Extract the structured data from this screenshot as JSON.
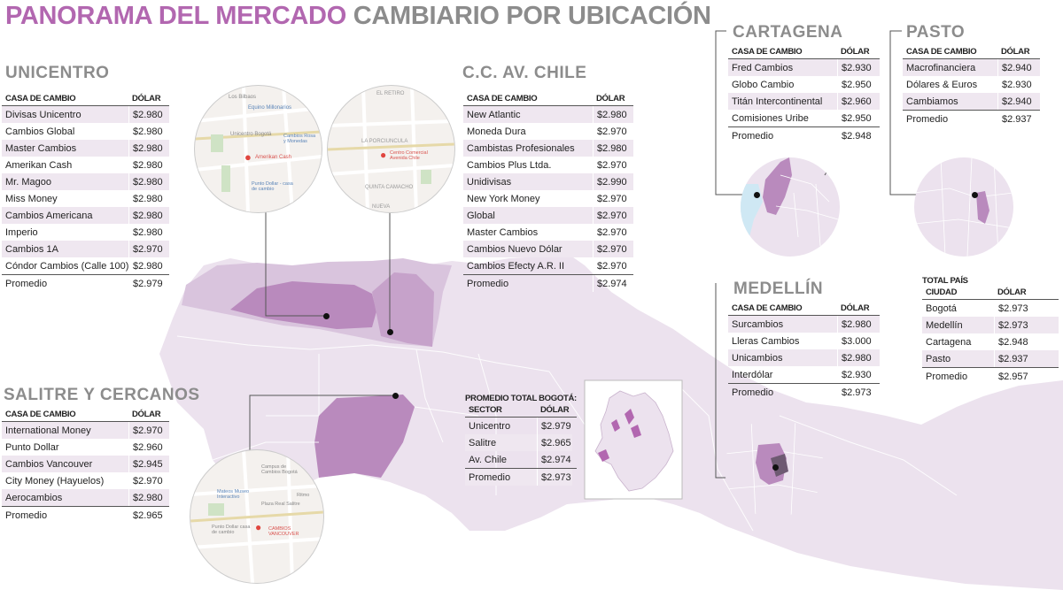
{
  "title": {
    "part1": "PANORAMA DEL MERCADO",
    "part2": "CAMBIARIO POR UBICACIÓN"
  },
  "col_house": "CASA DE CAMBIO",
  "col_dollar": "DÓLAR",
  "unicentro": {
    "title": "UNICENTRO",
    "rows": [
      {
        "name": "Divisas Unicentro",
        "value": "$2.980"
      },
      {
        "name": "Cambios Global",
        "value": "$2.980"
      },
      {
        "name": "Master Cambios",
        "value": "$2.980"
      },
      {
        "name": "Amerikan Cash",
        "value": "$2.980"
      },
      {
        "name": "Mr. Magoo",
        "value": "$2.980"
      },
      {
        "name": "Miss Money",
        "value": "$2.980"
      },
      {
        "name": "Cambios Americana",
        "value": "$2.980"
      },
      {
        "name": "Imperio",
        "value": "$2.980"
      },
      {
        "name": "Cambios 1A",
        "value": "$2.970"
      },
      {
        "name": "Cóndor Cambios (Calle 100)",
        "value": "$2.980"
      }
    ],
    "average": {
      "name": "Promedio",
      "value": "$2.979"
    }
  },
  "chile": {
    "title": "C.C. AV. CHILE",
    "rows": [
      {
        "name": "New Atlantic",
        "value": "$2.980"
      },
      {
        "name": "Moneda Dura",
        "value": "$2.970"
      },
      {
        "name": "Cambistas Profesionales",
        "value": "$2.980"
      },
      {
        "name": "Cambios Plus Ltda.",
        "value": "$2.970"
      },
      {
        "name": "Unidivisas",
        "value": "$2.990"
      },
      {
        "name": "New York Money",
        "value": "$2.970"
      },
      {
        "name": "Global",
        "value": "$2.970"
      },
      {
        "name": "Master Cambios",
        "value": "$2.970"
      },
      {
        "name": "Cambios Nuevo Dólar",
        "value": "$2.970"
      },
      {
        "name": "Cambios Efecty A.R. II",
        "value": "$2.970"
      }
    ],
    "average": {
      "name": "Promedio",
      "value": "$2.974"
    }
  },
  "salitre": {
    "title": "SALITRE Y CERCANOS",
    "rows": [
      {
        "name": "International Money",
        "value": "$2.970"
      },
      {
        "name": "Punto Dollar",
        "value": "$2.960"
      },
      {
        "name": "Cambios Vancouver",
        "value": "$2.945"
      },
      {
        "name": "City Money (Hayuelos)",
        "value": "$2.970"
      },
      {
        "name": "Aerocambios",
        "value": "$2.980"
      }
    ],
    "average": {
      "name": "Promedio",
      "value": "$2.965"
    }
  },
  "cartagena": {
    "title": "CARTAGENA",
    "rows": [
      {
        "name": "Fred Cambios",
        "value": "$2.930"
      },
      {
        "name": "Globo Cambio",
        "value": "$2.950"
      },
      {
        "name": "Titán Intercontinental",
        "value": "$2.960"
      },
      {
        "name": "Comisiones Uribe",
        "value": "$2.950"
      }
    ],
    "average": {
      "name": "Promedio",
      "value": "$2.948"
    }
  },
  "pasto": {
    "title": "PASTO",
    "rows": [
      {
        "name": "Macrofinanciera",
        "value": "$2.940"
      },
      {
        "name": "Dólares & Euros",
        "value": "$2.930"
      },
      {
        "name": "Cambiamos",
        "value": "$2.940"
      }
    ],
    "average": {
      "name": "Promedio",
      "value": "$2.937"
    }
  },
  "medellin": {
    "title": "MEDELLÍN",
    "rows": [
      {
        "name": "Surcambios",
        "value": "$2.980"
      },
      {
        "name": "Lleras Cambios",
        "value": "$3.000"
      },
      {
        "name": "Unicambios",
        "value": "$2.980"
      },
      {
        "name": "Interdólar",
        "value": "$2.930"
      }
    ],
    "average": {
      "name": "Promedio",
      "value": "$2.973"
    }
  },
  "bogota_total": {
    "title": "PROMEDIO TOTAL BOGOTÁ:",
    "col_sector": "SECTOR",
    "col_dollar": "DÓLAR",
    "rows": [
      {
        "name": "Unicentro",
        "value": "$2.979"
      },
      {
        "name": "Salitre",
        "value": "$2.965"
      },
      {
        "name": "Av. Chile",
        "value": "$2.974"
      },
      {
        "name": "Promedio",
        "value": "$2.973"
      }
    ]
  },
  "country_total": {
    "title": "TOTAL PAÍS",
    "col_city": "CIUDAD",
    "col_dollar": "DÓLAR",
    "rows": [
      {
        "name": "Bogotá",
        "value": "$2.973"
      },
      {
        "name": "Medellín",
        "value": "$2.973"
      },
      {
        "name": "Cartagena",
        "value": "$2.948"
      },
      {
        "name": "Pasto",
        "value": "$2.937"
      },
      {
        "name": "Promedio",
        "value": "$2.957"
      }
    ]
  },
  "map_labels": {
    "unicentro_1": "Los Bilbaos",
    "unicentro_2": "Equino Millonarios",
    "unicentro_3": "Unicentro Bogotá",
    "unicentro_4": "Cambios Rosa y Monedas",
    "unicentro_5": "Amerikan Cash",
    "unicentro_6": "Punto Dollar - casa de cambio",
    "chile_1": "EL RETIRO",
    "chile_2": "LA PORCIUNCULA",
    "chile_3": "Centro Comercial Avenida Chile",
    "chile_4": "QUINTA CAMACHO",
    "chile_5": "NUEVA",
    "salitre_1": "Campus de Cambios Bogotá",
    "salitre_2": "Mateos Museo Interactivo",
    "salitre_3": "Plaza Real Salitre",
    "salitre_4": "Punto Dollar casa de cambio",
    "salitre_5": "CAMBIOS VANCOUVER",
    "salitre_6": "Ritmo"
  },
  "colors": {
    "purple": "#b267b0",
    "gray_title": "#8c8c8c",
    "shade": "#efe7f0",
    "map_light": "#ece2ee",
    "map_mid": "#d9c4dd",
    "map_dark": "#b98abd"
  }
}
